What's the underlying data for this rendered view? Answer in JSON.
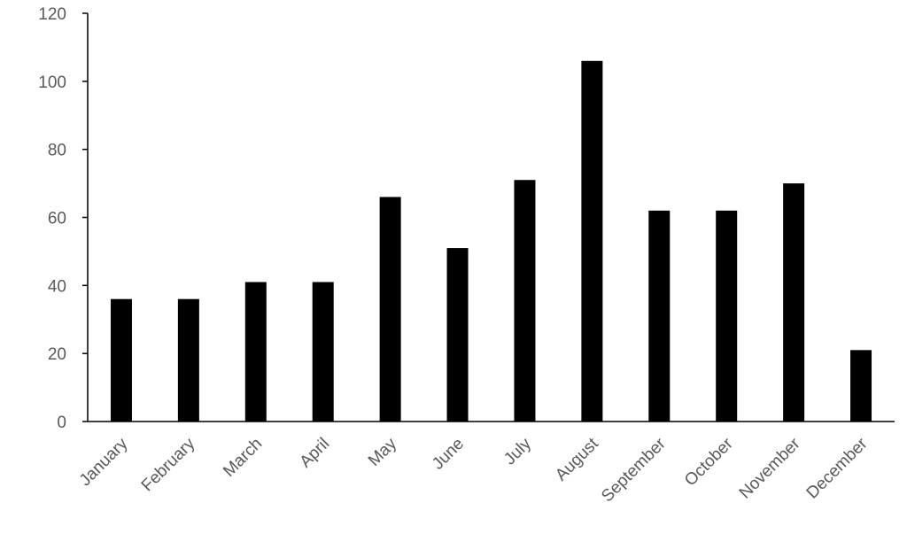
{
  "chart_data": {
    "type": "bar",
    "title": "",
    "xlabel": "",
    "ylabel": "",
    "categories": [
      "January",
      "February",
      "March",
      "April",
      "May",
      "June",
      "July",
      "August",
      "September",
      "October",
      "November",
      "December"
    ],
    "values": [
      36,
      36,
      41,
      41,
      66,
      51,
      71,
      106,
      62,
      62,
      70,
      21
    ],
    "ylim": [
      0,
      120
    ],
    "yticks": [
      "0",
      "20",
      "40",
      "60",
      "80",
      "100",
      "120"
    ],
    "grid": false,
    "legend": false,
    "bar_color": "#000000"
  }
}
